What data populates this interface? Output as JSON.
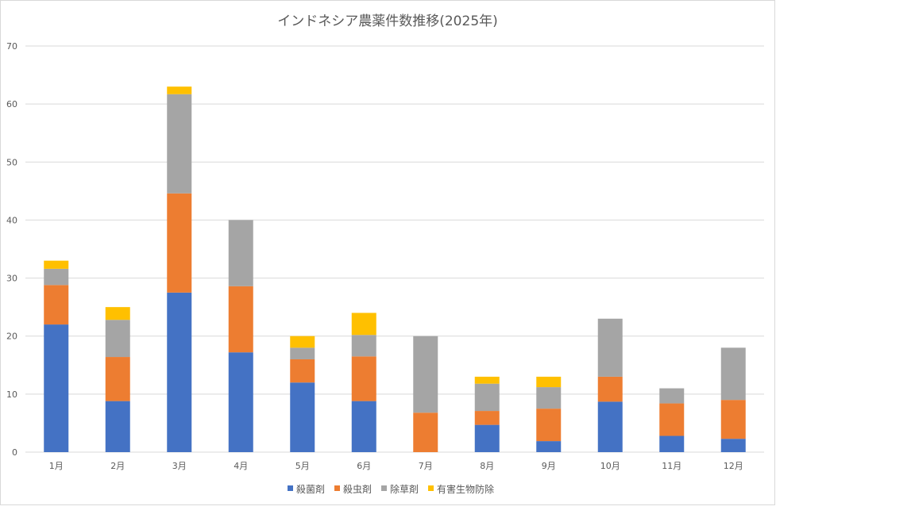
{
  "chart_data": {
    "type": "bar",
    "stacked": true,
    "title": "インドネシア農薬件数推移(2025年)",
    "categories": [
      "1月",
      "2月",
      "3月",
      "4月",
      "5月",
      "6月",
      "7月",
      "8月",
      "9月",
      "10月",
      "11月",
      "12月"
    ],
    "ylim": [
      0,
      70
    ],
    "yticks": [
      0,
      10,
      20,
      30,
      40,
      50,
      60,
      70
    ],
    "grid": true,
    "legend_position": "bottom",
    "series": [
      {
        "name": "殺菌剤",
        "color": "#4472C4",
        "values": [
          22,
          8.8,
          27.5,
          17.2,
          12,
          8.8,
          0,
          4.7,
          1.9,
          8.7,
          2.8,
          2.3
        ]
      },
      {
        "name": "殺虫剤",
        "color": "#ED7D31",
        "values": [
          6.8,
          7.6,
          17.1,
          11.4,
          4,
          7.7,
          6.8,
          2.4,
          5.6,
          4.3,
          5.6,
          6.7
        ]
      },
      {
        "name": "除草剤",
        "color": "#A5A5A5",
        "values": [
          2.8,
          6.4,
          17.1,
          11.4,
          2,
          3.7,
          13.2,
          4.7,
          3.7,
          10,
          2.6,
          9
        ]
      },
      {
        "name": "有害生物防除",
        "color": "#FFC000",
        "values": [
          1.4,
          2.2,
          1.3,
          0,
          2,
          3.8,
          0,
          1.2,
          1.8,
          0,
          0,
          0
        ]
      }
    ]
  }
}
